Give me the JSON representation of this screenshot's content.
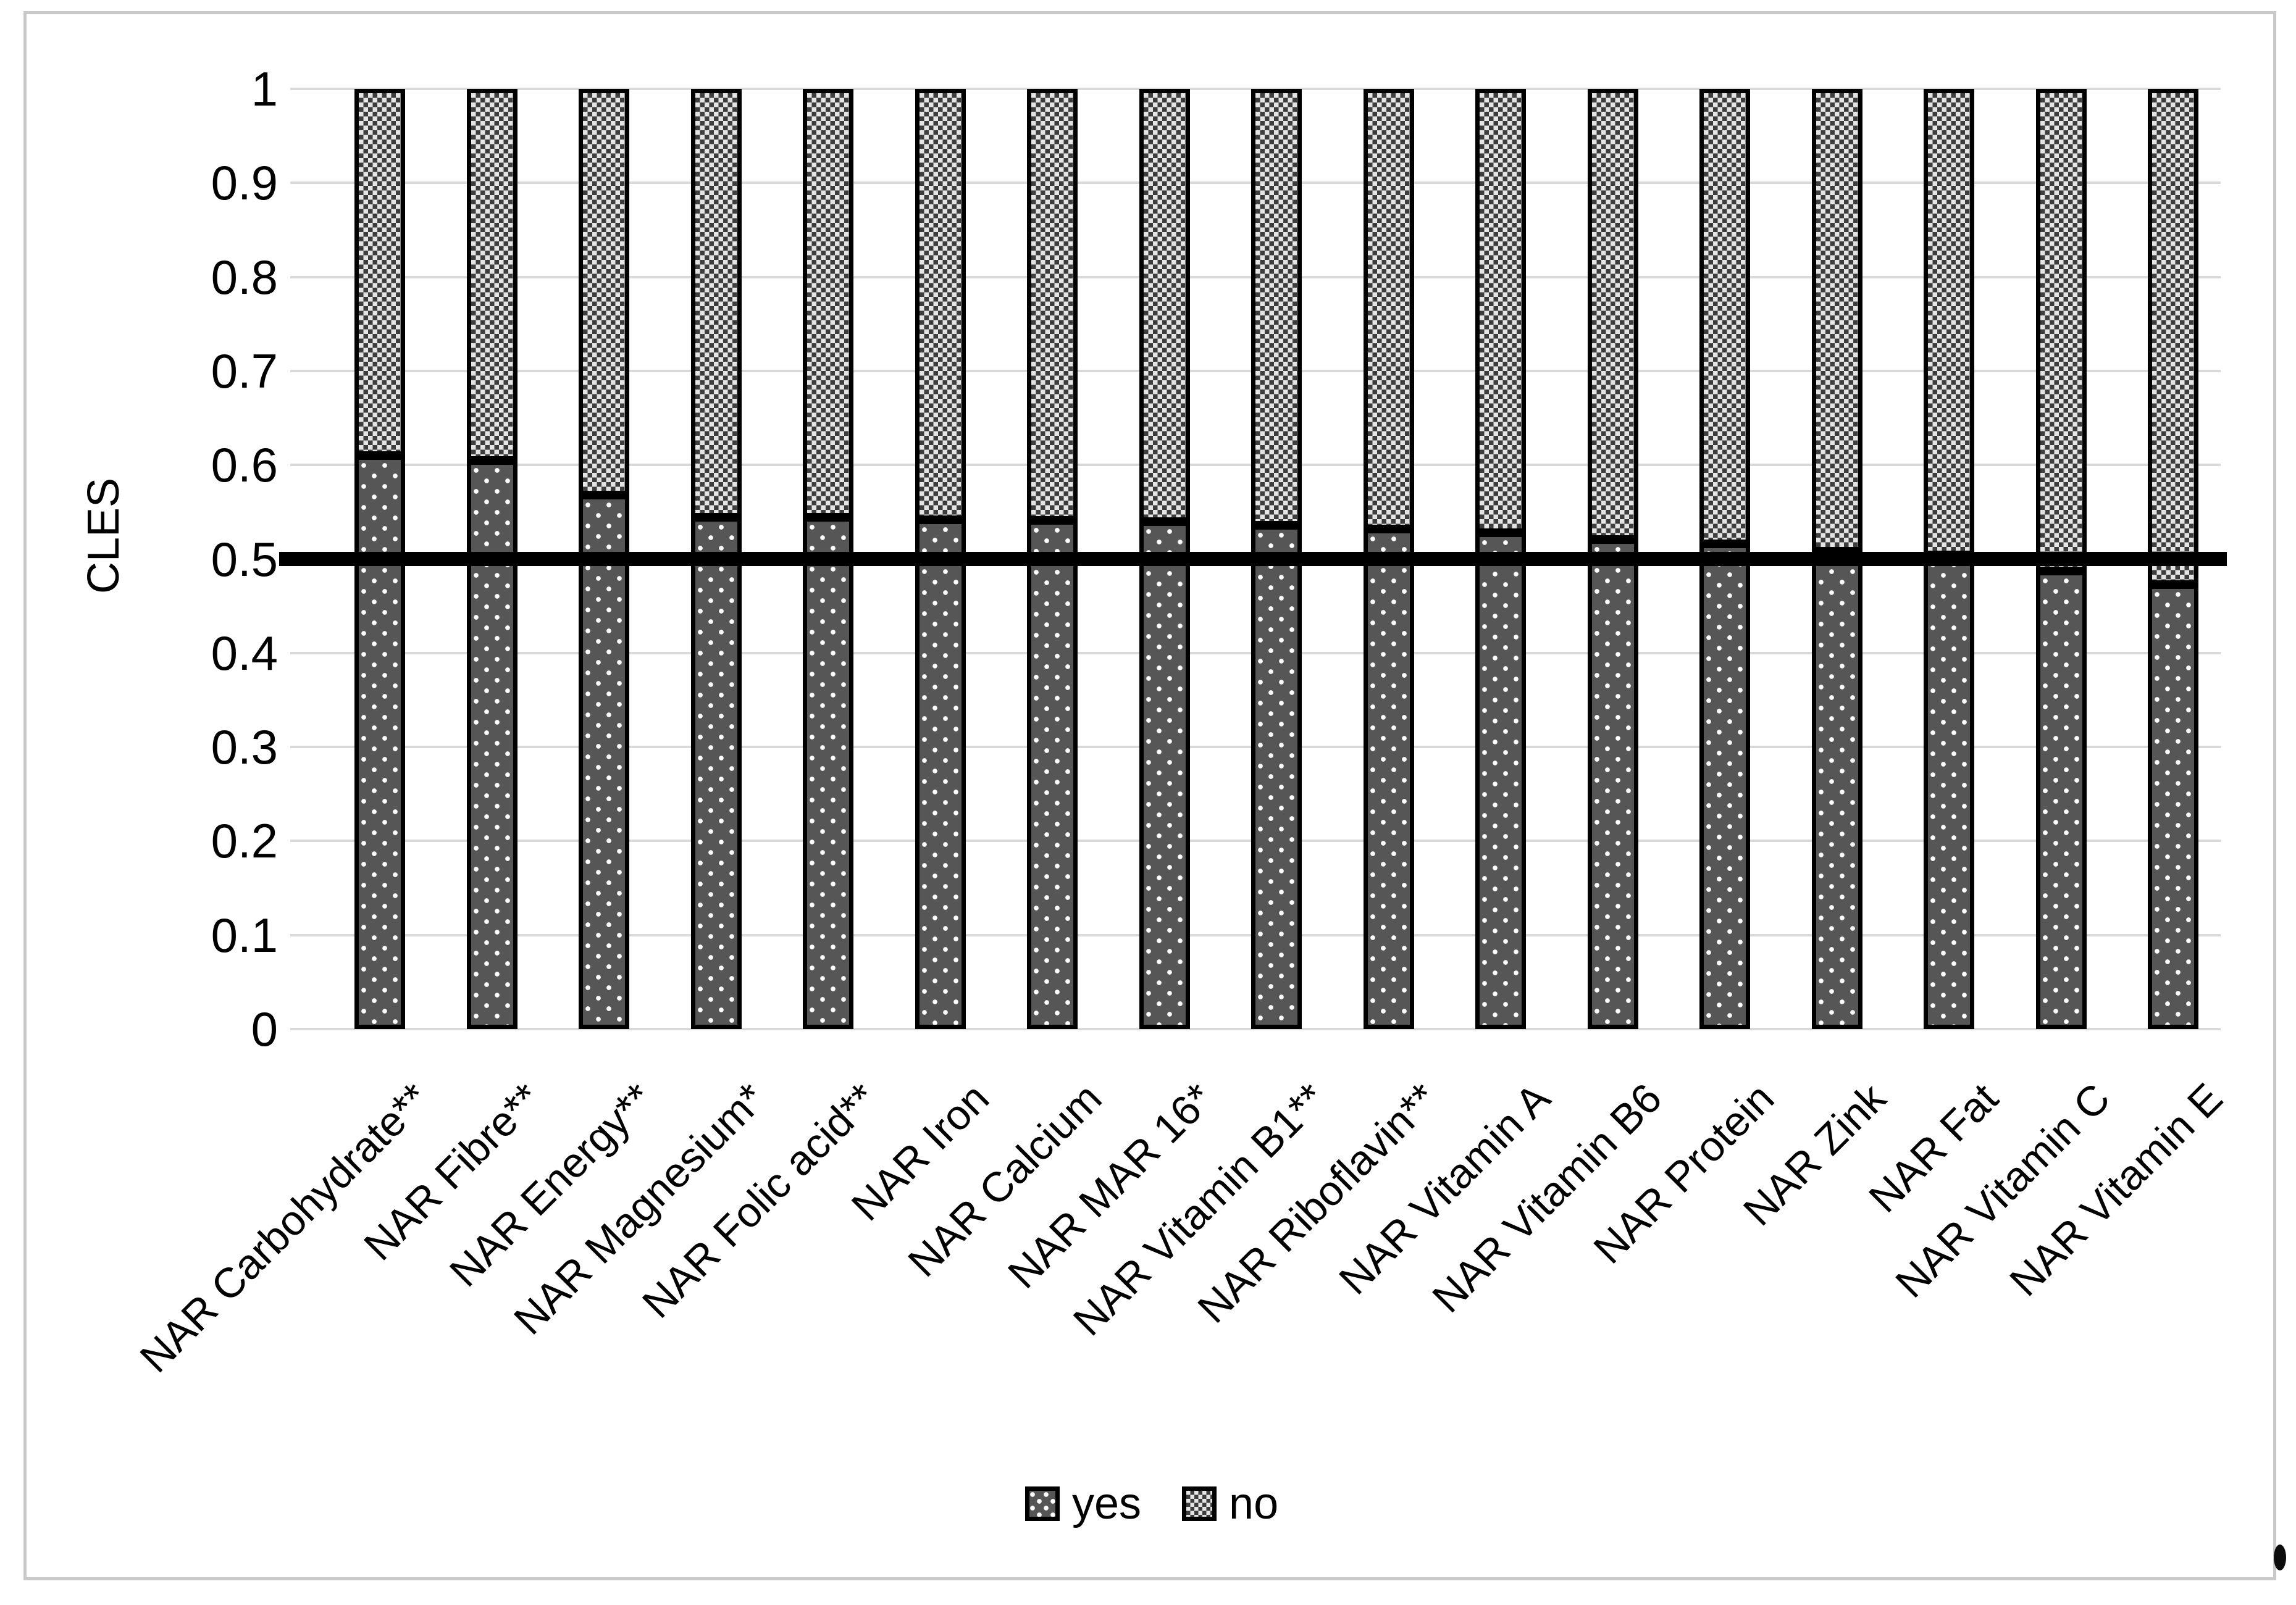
{
  "chart_data": {
    "type": "bar",
    "stacked": true,
    "title": "",
    "xlabel": "",
    "ylabel": "CLES",
    "ylim": [
      0,
      1
    ],
    "yticks": [
      "1",
      "0.9",
      "0.8",
      "0.7",
      "0.6",
      "0.5",
      "0.4",
      "0.3",
      "0.2",
      "0.1",
      "0"
    ],
    "grid": true,
    "x_tick_rotation": 45,
    "reference_line": 0.5,
    "legend_position": "bottom",
    "categories": [
      "NAR Carbohydrate**",
      "NAR Fibre**",
      "NAR Energy**",
      "NAR Magnesium*",
      "NAR Folic acid**",
      "NAR Iron",
      "NAR Calcium",
      "NAR MAR 16*",
      "NAR Vitamin B1**",
      "NAR Riboflavin**",
      "NAR Vitamin A",
      "NAR Vitamin B6",
      "NAR Protein",
      "NAR Zink",
      "NAR Fat",
      "NAR Vitamin C",
      "NAR Vitamin E"
    ],
    "series": [
      {
        "name": "yes",
        "pattern": "dark-gray-white-dots",
        "values": [
          0.61,
          0.605,
          0.568,
          0.544,
          0.544,
          0.542,
          0.541,
          0.54,
          0.536,
          0.532,
          0.528,
          0.521,
          0.516,
          0.508,
          0.504,
          0.487,
          0.473
        ]
      },
      {
        "name": "no",
        "pattern": "gray-checkerboard",
        "values": [
          0.39,
          0.395,
          0.432,
          0.456,
          0.456,
          0.458,
          0.459,
          0.46,
          0.464,
          0.468,
          0.472,
          0.479,
          0.484,
          0.492,
          0.496,
          0.513,
          0.527
        ]
      }
    ]
  },
  "colors": {
    "yes_base": "#565656",
    "yes_dot": "#ffffff",
    "no_dark": "#3d3d3d",
    "no_light": "#e4e4e4",
    "bar_border": "#000000",
    "gridline": "#d9d9d9",
    "reference_line": "#000000",
    "frame_border": "#c9c9c9",
    "text": "#000000",
    "background": "#ffffff"
  }
}
